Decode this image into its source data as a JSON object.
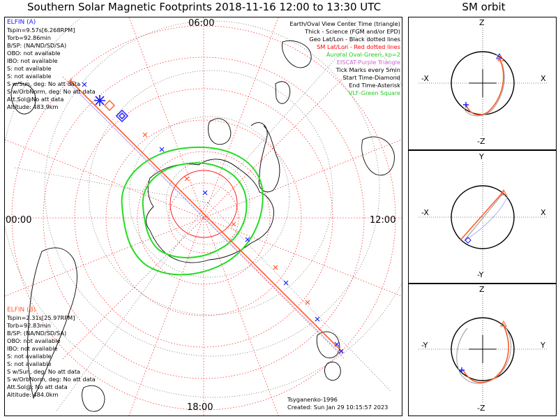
{
  "title": "Southern Solar Magnetic Footprints 2018-11-16 12:00 to 13:30 UTC",
  "orbit_title": "SM orbit",
  "clock_labels": {
    "top": "06:00",
    "left": "00:00",
    "right": "12:00",
    "bottom": "18:00"
  },
  "probe_a": {
    "name": "ELFIN (A)",
    "color": "#1a1aff",
    "lines": [
      "Tspin=9.57s[6.268RPM]",
      "Torb=92.86min",
      "B/SP: (NA/ND/SD/SA)",
      "OBO: not available",
      "IBO: not available",
      "S: not available",
      "S: not available",
      "S w/Sun, deg: No att data",
      "S w/OrbNorm, deg: No att data",
      "Att.Sol@No att data",
      "Altitude: 483.9km"
    ]
  },
  "probe_b": {
    "name": "ELFIN (B)",
    "color": "#ff5a28",
    "lines": [
      "Tspin=2.31s[25.97RPM]",
      "Torb=92.83min",
      "B/SP: (NA/ND/SD/SA)",
      "OBO: not available",
      "IBO: not available",
      "S: not available",
      "S: not available",
      "S w/Sun, deg: No att data",
      "S w/OrbNorm, deg: No att data",
      "Att.Sol@: No att data",
      "Altitude: 484.0km"
    ]
  },
  "legend": [
    {
      "text": "Earth/Oval View Center Time (triangle)",
      "color": "#000000"
    },
    {
      "text": "Thick - Science (FGM and/or EPD)",
      "color": "#000000"
    },
    {
      "text": "Geo Lat/Lon - Black dotted lines",
      "color": "#000000"
    },
    {
      "text": "SM Lat/Lon - Red dotted lines",
      "color": "#ff0000"
    },
    {
      "text": "Auroral Oval-Green, kp=2",
      "color": "#22cc22"
    },
    {
      "text": "EISCAT-Purple Triangle",
      "color": "#cc66cc"
    },
    {
      "text": "Tick Marks every 5min",
      "color": "#000000"
    },
    {
      "text": "Start Time-Diamond",
      "color": "#000000"
    },
    {
      "text": "End Time-Asterisk",
      "color": "#000000"
    },
    {
      "text": "VLF-Green Square",
      "color": "#22cc22"
    }
  ],
  "footer": {
    "model": "Tsyganenko-1996",
    "created": "Created: Sun Jan 29 10:15:57 2023"
  },
  "orbit_panels": [
    {
      "top": "Z",
      "bottom": "-Z",
      "left": "-X",
      "right": "X"
    },
    {
      "top": "Y",
      "bottom": "-Y",
      "left": "-X",
      "right": "X"
    },
    {
      "top": "Z",
      "bottom": "-Z",
      "left": "-Y",
      "right": "Y"
    }
  ]
}
